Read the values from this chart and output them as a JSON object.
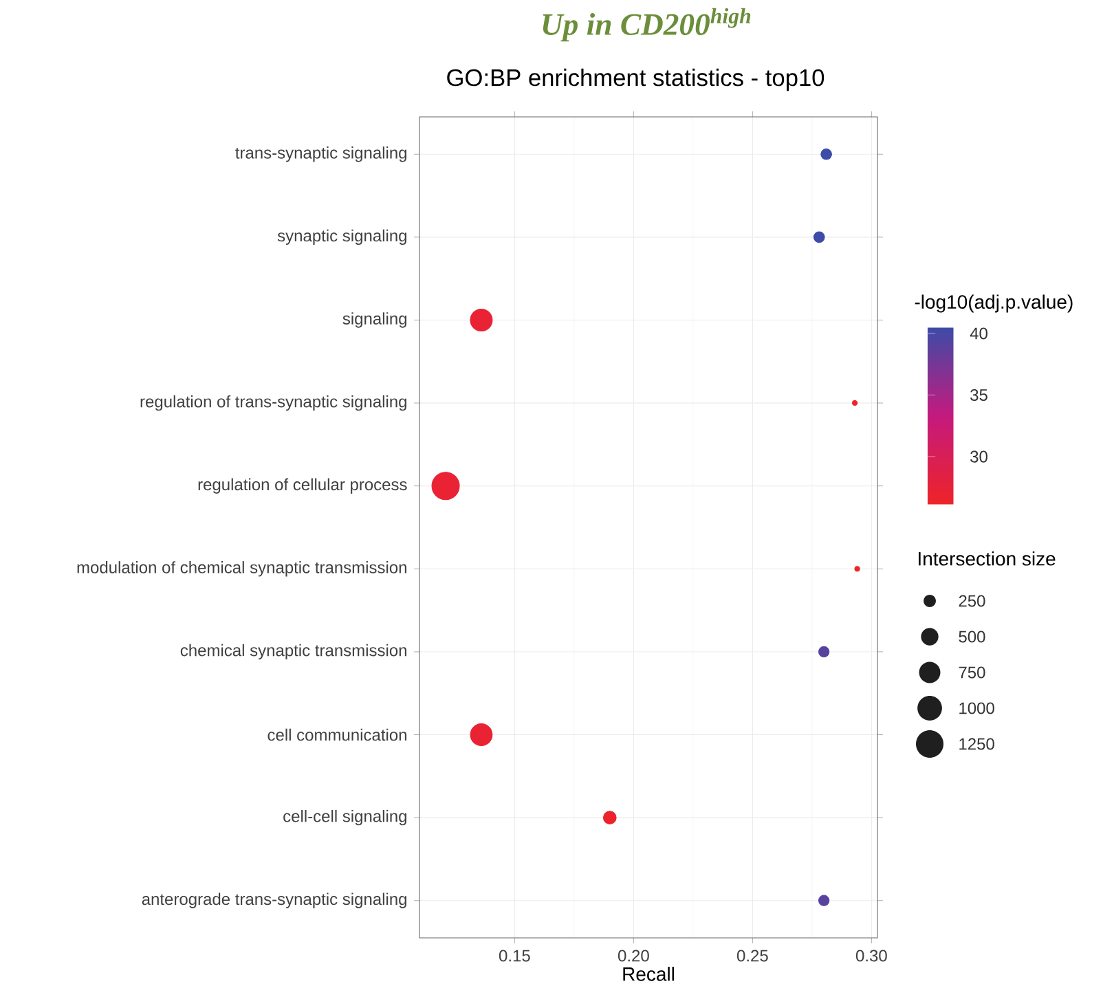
{
  "chart_data": {
    "type": "bubble",
    "title": "*Up in CD200$^{high}$*",
    "subtitle": "GO:BP enrichment statistics - top10",
    "xlabel": "Recall",
    "clabel": "-log10(adj.p.value)",
    "legend_title": "Intersection size",
    "orientation": "horizontal",
    "categories": [
      "trans-synaptic signaling",
      "synaptic signaling",
      "signaling",
      "regulation of trans-synaptic signaling",
      "regulation of cellular process",
      "modulation of chemical synaptic transmission",
      "chemical synaptic transmission",
      "cell communication",
      "cell-cell signaling",
      "anterograde trans-synaptic signaling"
    ],
    "values": [
      0.281,
      0.278,
      0.136,
      0.293,
      0.121,
      0.294,
      0.28,
      0.136,
      0.19,
      0.28
    ],
    "sizes": [
      190,
      190,
      800,
      40,
      1250,
      40,
      180,
      790,
      270,
      180
    ],
    "size_legend": [
      250,
      500,
      750,
      1000,
      1250
    ],
    "cvalues": [
      40.5,
      40.5,
      27,
      26.1,
      27,
      26.1,
      39,
      27,
      26.5,
      39
    ],
    "clim": [
      26.1,
      40.5
    ],
    "cticks": [
      30,
      35,
      40
    ],
    "xlim": [
      0.11,
      0.3025
    ],
    "xticks": [
      0.15,
      {
        "value": 0.2,
        "label": "0.20"
      },
      0.25,
      {
        "value": 0.3,
        "label": "0.30"
      }
    ],
    "grid": true
  }
}
